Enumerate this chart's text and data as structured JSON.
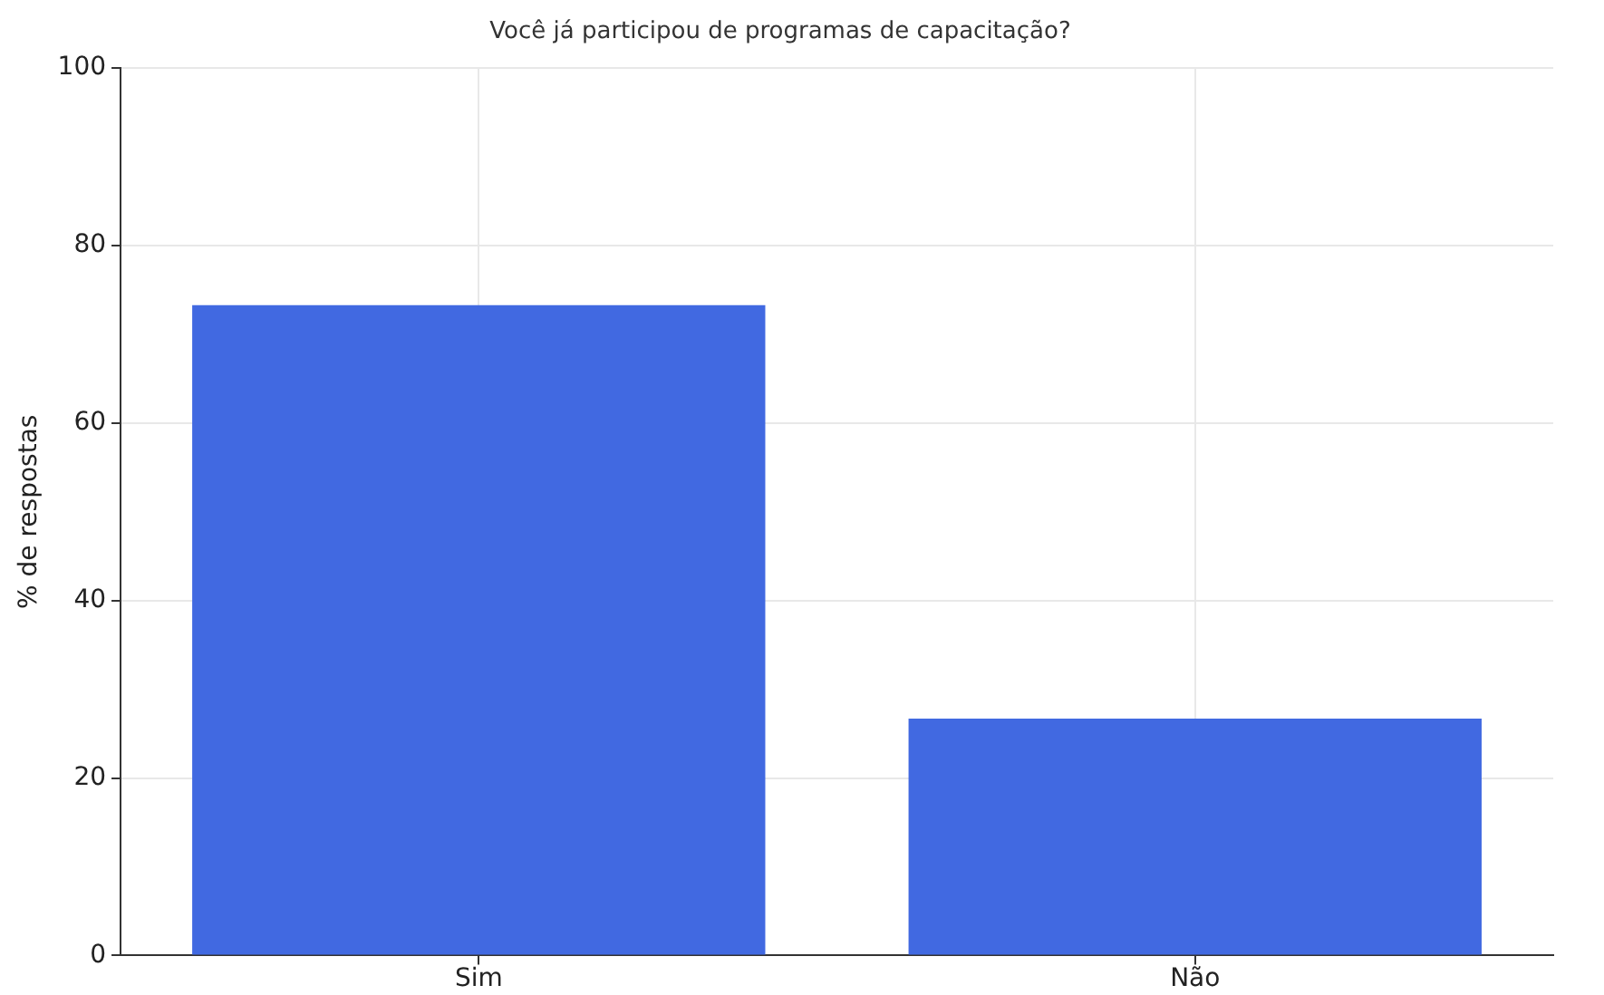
{
  "chart_data": {
    "type": "bar",
    "title": "Você já participou de programas de capacitação?",
    "ylabel": "% de respostas",
    "categories": [
      "Sim",
      "Não"
    ],
    "values": [
      73.3,
      26.7
    ],
    "color": "#4169e1",
    "ylim": [
      0,
      100
    ],
    "yticks": [
      0,
      20,
      40,
      60,
      80,
      100
    ],
    "grid": true
  }
}
